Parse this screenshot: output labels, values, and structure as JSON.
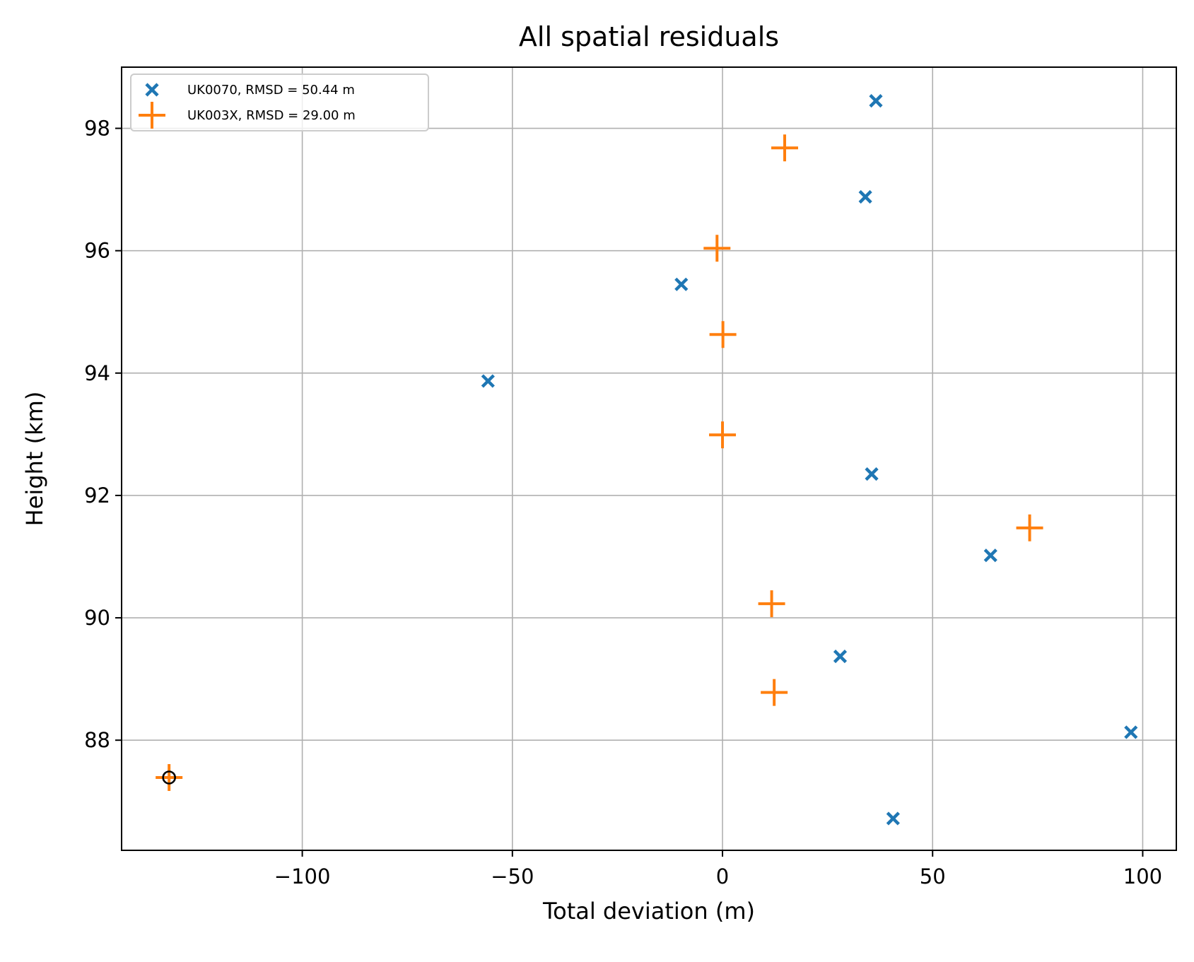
{
  "chart_data": {
    "type": "scatter",
    "title": "All spatial residuals",
    "xlabel": "Total deviation (m)",
    "ylabel": "Height (km)",
    "xlim": [
      -143,
      108
    ],
    "ylim": [
      86.2,
      99.0
    ],
    "xticks": [
      -100,
      -50,
      0,
      50,
      100
    ],
    "xtick_labels": [
      "−100",
      "−50",
      "0",
      "50",
      "100"
    ],
    "yticks": [
      88,
      90,
      92,
      94,
      96,
      98
    ],
    "ytick_labels": [
      "88",
      "90",
      "92",
      "94",
      "96",
      "98"
    ],
    "grid": true,
    "legend_position": "top-left",
    "series": [
      {
        "name": "UK0070, RMSD = 50.44 m",
        "marker": "x",
        "color": "#1f77b4",
        "points": [
          {
            "x": 36.5,
            "y": 98.45
          },
          {
            "x": 34.0,
            "y": 96.88
          },
          {
            "x": -9.8,
            "y": 95.45
          },
          {
            "x": -55.8,
            "y": 93.87
          },
          {
            "x": 35.5,
            "y": 92.35
          },
          {
            "x": 63.8,
            "y": 91.02
          },
          {
            "x": 28.0,
            "y": 89.37
          },
          {
            "x": 97.2,
            "y": 88.13
          },
          {
            "x": 40.6,
            "y": 86.72
          }
        ]
      },
      {
        "name": "UK003X, RMSD = 29.00 m",
        "marker": "+",
        "color": "#ff7f0e",
        "points": [
          {
            "x": 14.8,
            "y": 97.68
          },
          {
            "x": -1.3,
            "y": 96.04
          },
          {
            "x": 0.1,
            "y": 94.63
          },
          {
            "x": 0.0,
            "y": 92.99
          },
          {
            "x": 73.1,
            "y": 91.47
          },
          {
            "x": 11.7,
            "y": 90.23
          },
          {
            "x": 12.3,
            "y": 88.78
          },
          {
            "x": -131.7,
            "y": 87.39
          }
        ]
      }
    ],
    "highlighted_points": [
      {
        "x": -131.7,
        "y": 87.39,
        "marker": "circle",
        "color": "#000000"
      }
    ]
  }
}
